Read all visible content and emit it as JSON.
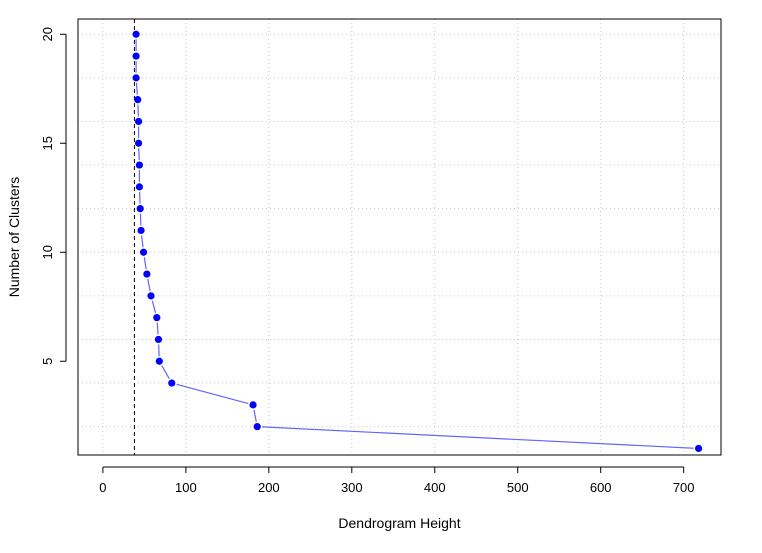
{
  "chart_data": {
    "type": "line",
    "title": "",
    "xlabel": "Dendrogram Height",
    "ylabel": "Number of Clusters",
    "xlim": [
      -30,
      745
    ],
    "ylim": [
      0.7,
      20.7
    ],
    "x_ticks": [
      0,
      100,
      200,
      300,
      400,
      500,
      600,
      700
    ],
    "y_ticks": [
      5,
      10,
      15,
      20
    ],
    "x_grid": [
      0,
      100,
      200,
      300,
      400,
      500,
      600,
      700
    ],
    "y_grid": [
      2,
      4,
      6,
      8,
      10,
      12,
      14,
      16,
      18,
      20
    ],
    "grid": true,
    "series": [
      {
        "point_color": "#0000ff",
        "line_color": "#6464ff",
        "points": [
          {
            "x": 40,
            "y": 20
          },
          {
            "x": 40,
            "y": 19
          },
          {
            "x": 40,
            "y": 18
          },
          {
            "x": 42,
            "y": 17
          },
          {
            "x": 43,
            "y": 16
          },
          {
            "x": 43,
            "y": 15
          },
          {
            "x": 44,
            "y": 14
          },
          {
            "x": 44,
            "y": 13
          },
          {
            "x": 45,
            "y": 12
          },
          {
            "x": 46,
            "y": 11
          },
          {
            "x": 49,
            "y": 10
          },
          {
            "x": 53,
            "y": 9
          },
          {
            "x": 58,
            "y": 8
          },
          {
            "x": 65,
            "y": 7
          },
          {
            "x": 67,
            "y": 6
          },
          {
            "x": 68,
            "y": 5
          },
          {
            "x": 83,
            "y": 4
          },
          {
            "x": 181,
            "y": 3
          },
          {
            "x": 186,
            "y": 2
          },
          {
            "x": 718,
            "y": 1
          }
        ]
      }
    ],
    "reference_line": {
      "x": 38,
      "style": "dashed",
      "color": "#000000"
    },
    "colors": {
      "grid": "#c8c8c8",
      "axis": "#000000",
      "text": "#000000"
    }
  }
}
